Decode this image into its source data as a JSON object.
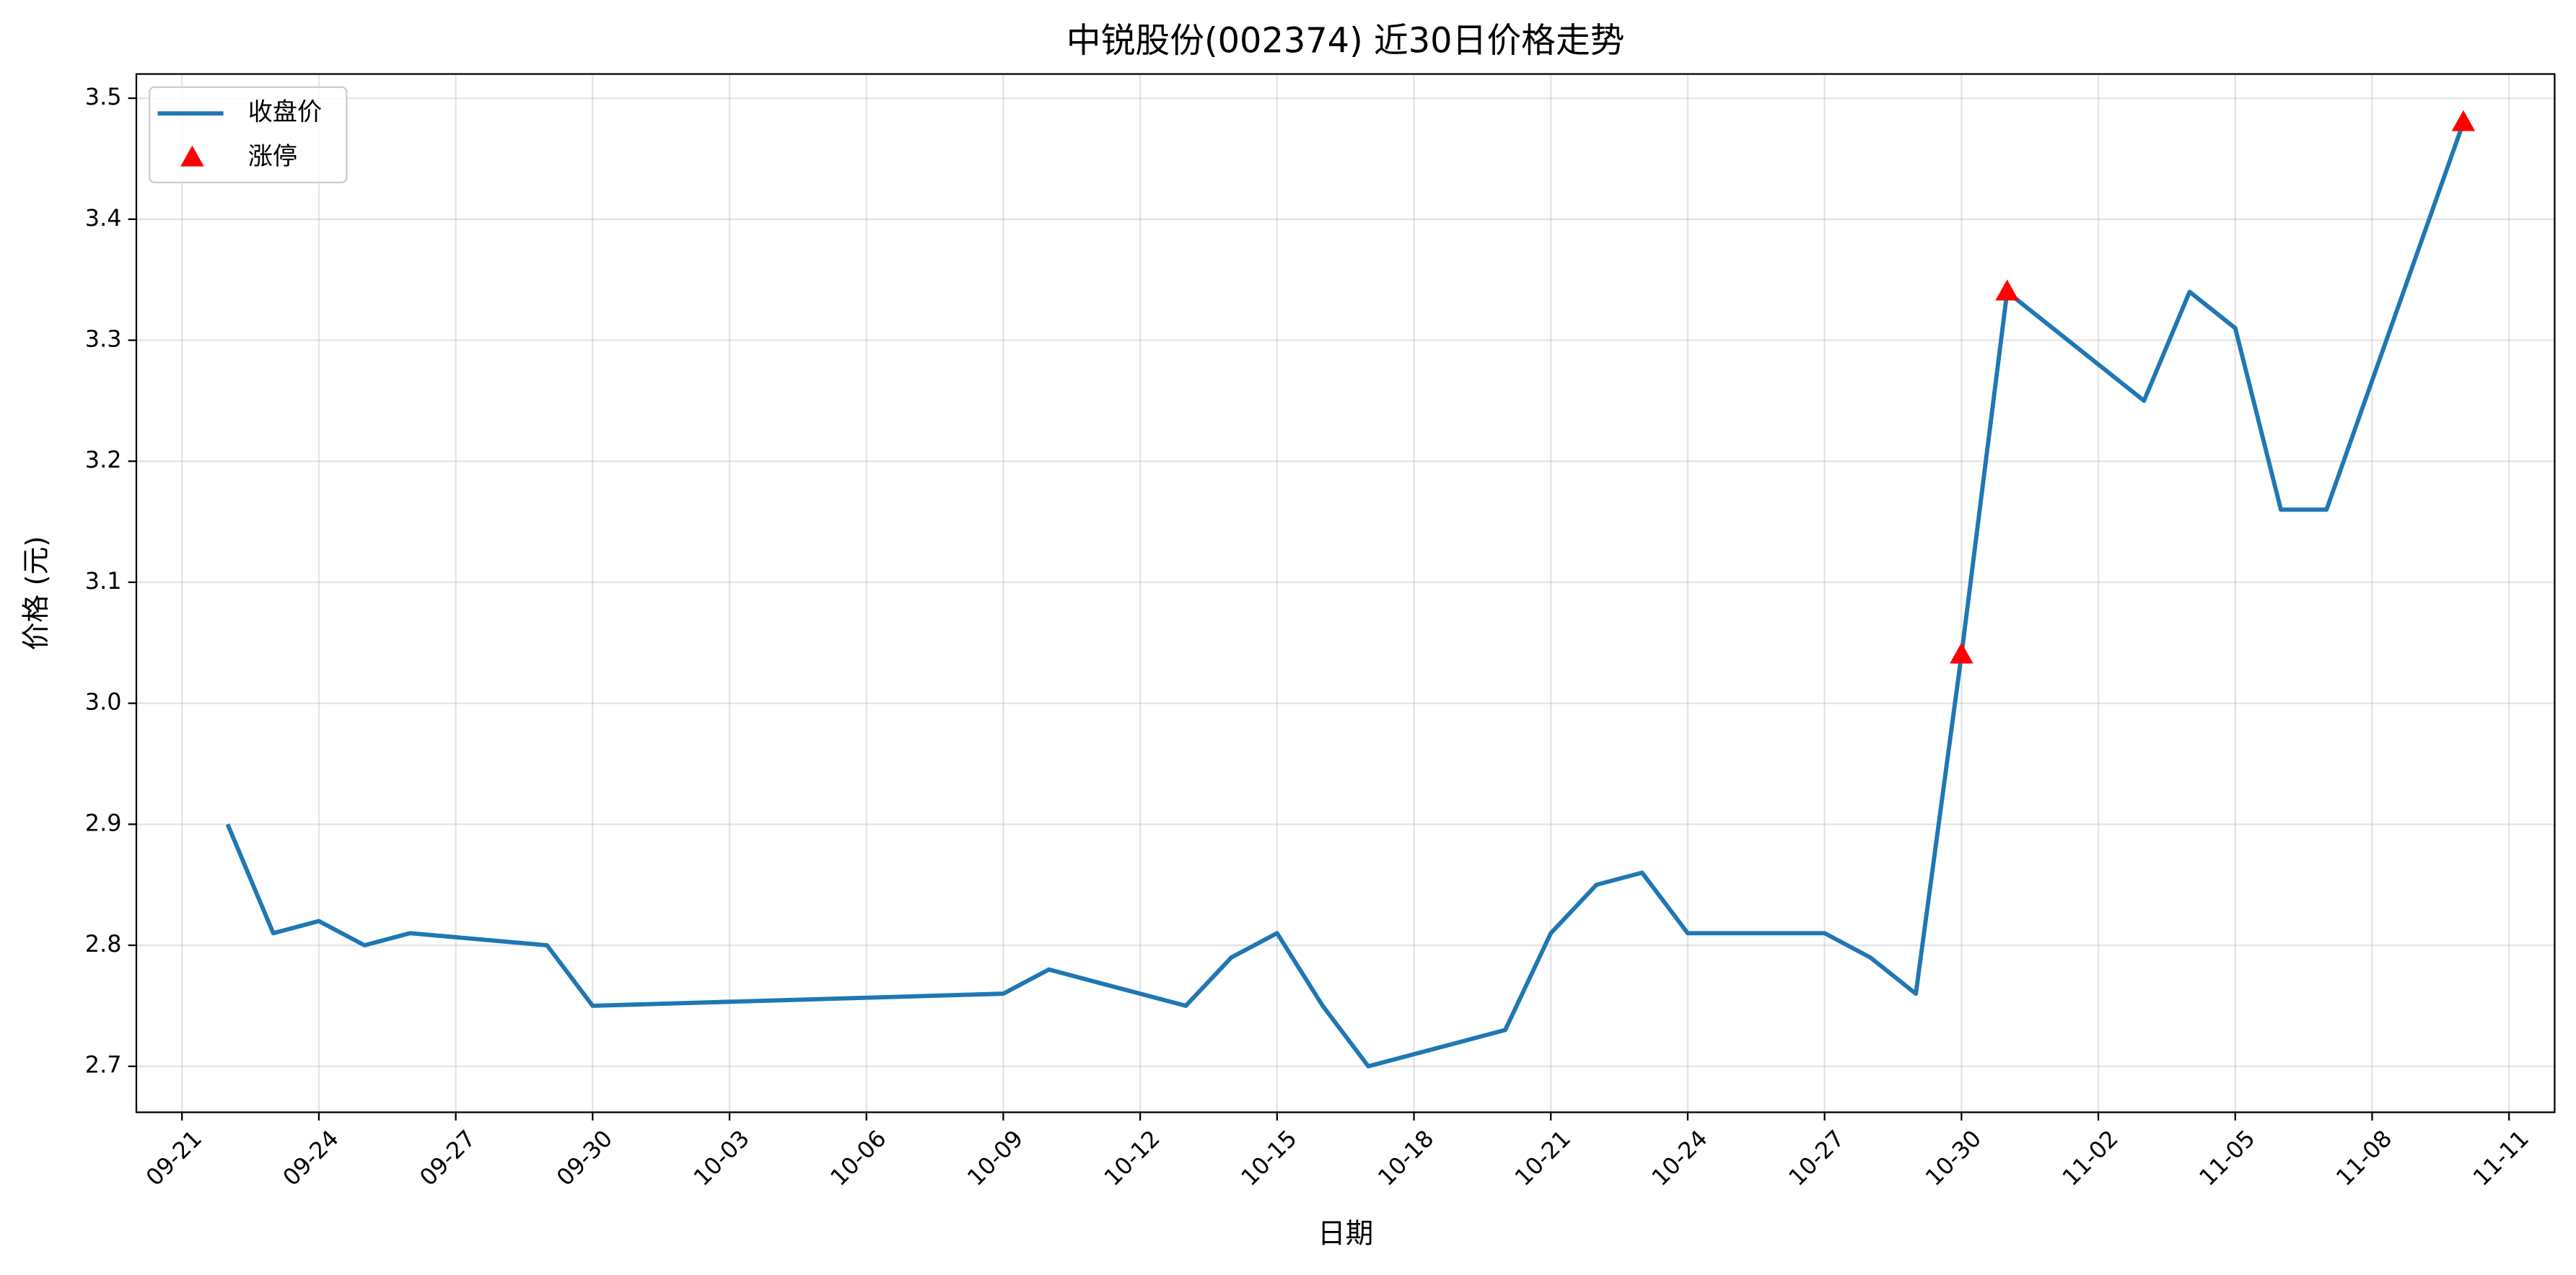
{
  "chart_data": {
    "type": "line",
    "title": "中锐股份(002374) 近30日价格走势",
    "x_label": "日期",
    "y_label": "价格 (元)",
    "xlim": [
      "09-20",
      "11-12"
    ],
    "xticks": [
      "09-21",
      "09-24",
      "09-27",
      "09-30",
      "10-03",
      "10-06",
      "10-09",
      "10-12",
      "10-15",
      "10-18",
      "10-21",
      "10-24",
      "10-27",
      "10-30",
      "11-02",
      "11-05",
      "11-08",
      "11-11"
    ],
    "ylim": [
      2.662,
      3.52
    ],
    "yticks": [
      2.7,
      2.8,
      2.9,
      {
        "value": 3,
        "label": "3.0"
      },
      3.1,
      3.2,
      3.3,
      3.4,
      3.5
    ],
    "grid": true,
    "legend": "upper left",
    "series": [
      {
        "name": "收盘价",
        "type": "line",
        "color": "#1f77b4",
        "x": [
          "09-22",
          "09-23",
          "09-24",
          "09-25",
          "09-26",
          "09-29",
          "09-30",
          "10-09",
          "10-10",
          "10-13",
          "10-14",
          "10-15",
          "10-16",
          "10-17",
          "10-20",
          "10-21",
          "10-22",
          "10-23",
          "10-24",
          "10-27",
          "10-28",
          "10-29",
          "10-30",
          "10-31",
          "11-03",
          "11-04",
          "11-05",
          "11-06",
          "11-07",
          "11-10"
        ],
        "values": [
          2.9,
          2.81,
          2.82,
          2.8,
          2.81,
          2.8,
          2.75,
          2.76,
          2.78,
          2.75,
          2.79,
          2.81,
          2.75,
          2.7,
          2.73,
          2.81,
          2.85,
          2.86,
          2.81,
          2.81,
          2.79,
          2.76,
          3.04,
          3.34,
          3.25,
          3.34,
          3.31,
          3.16,
          3.16,
          3.48
        ]
      },
      {
        "name": "涨停",
        "type": "scatter",
        "color": "#ff0000",
        "x": [
          "10-30",
          "10-31",
          "11-10"
        ],
        "values": [
          3.04,
          3.34,
          3.48
        ]
      }
    ]
  }
}
